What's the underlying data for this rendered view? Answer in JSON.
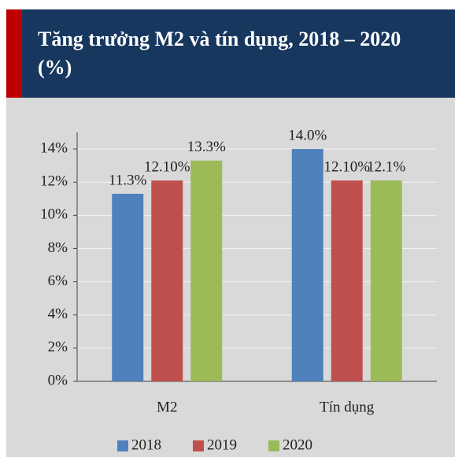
{
  "chart_data": {
    "type": "bar",
    "title": "Tăng trưởng M2 và tín dụng, 2018 – 2020 (%)",
    "categories": [
      "M2",
      "Tín dụng"
    ],
    "series": [
      {
        "name": "2018",
        "color": "#4f81bd",
        "values": [
          11.3,
          14.0
        ],
        "value_labels": [
          "11.3%",
          "14.0%"
        ]
      },
      {
        "name": "2019",
        "color": "#c0504d",
        "values": [
          12.1,
          12.1
        ],
        "value_labels": [
          "12.10%",
          "12.10%"
        ]
      },
      {
        "name": "2020",
        "color": "#9bbb59",
        "values": [
          13.3,
          12.1
        ],
        "value_labels": [
          "13.3%",
          "12.1%"
        ]
      }
    ],
    "ylim": [
      0,
      15
    ],
    "yticks": [
      {
        "value": 0,
        "label": "0%"
      },
      {
        "value": 2,
        "label": "2%"
      },
      {
        "value": 4,
        "label": "4%"
      },
      {
        "value": 6,
        "label": "6%"
      },
      {
        "value": 8,
        "label": "8%"
      },
      {
        "value": 10,
        "label": "10%"
      },
      {
        "value": 12,
        "label": "12%"
      },
      {
        "value": 14,
        "label": "14%"
      }
    ],
    "grid": true,
    "legend": "bottom"
  }
}
